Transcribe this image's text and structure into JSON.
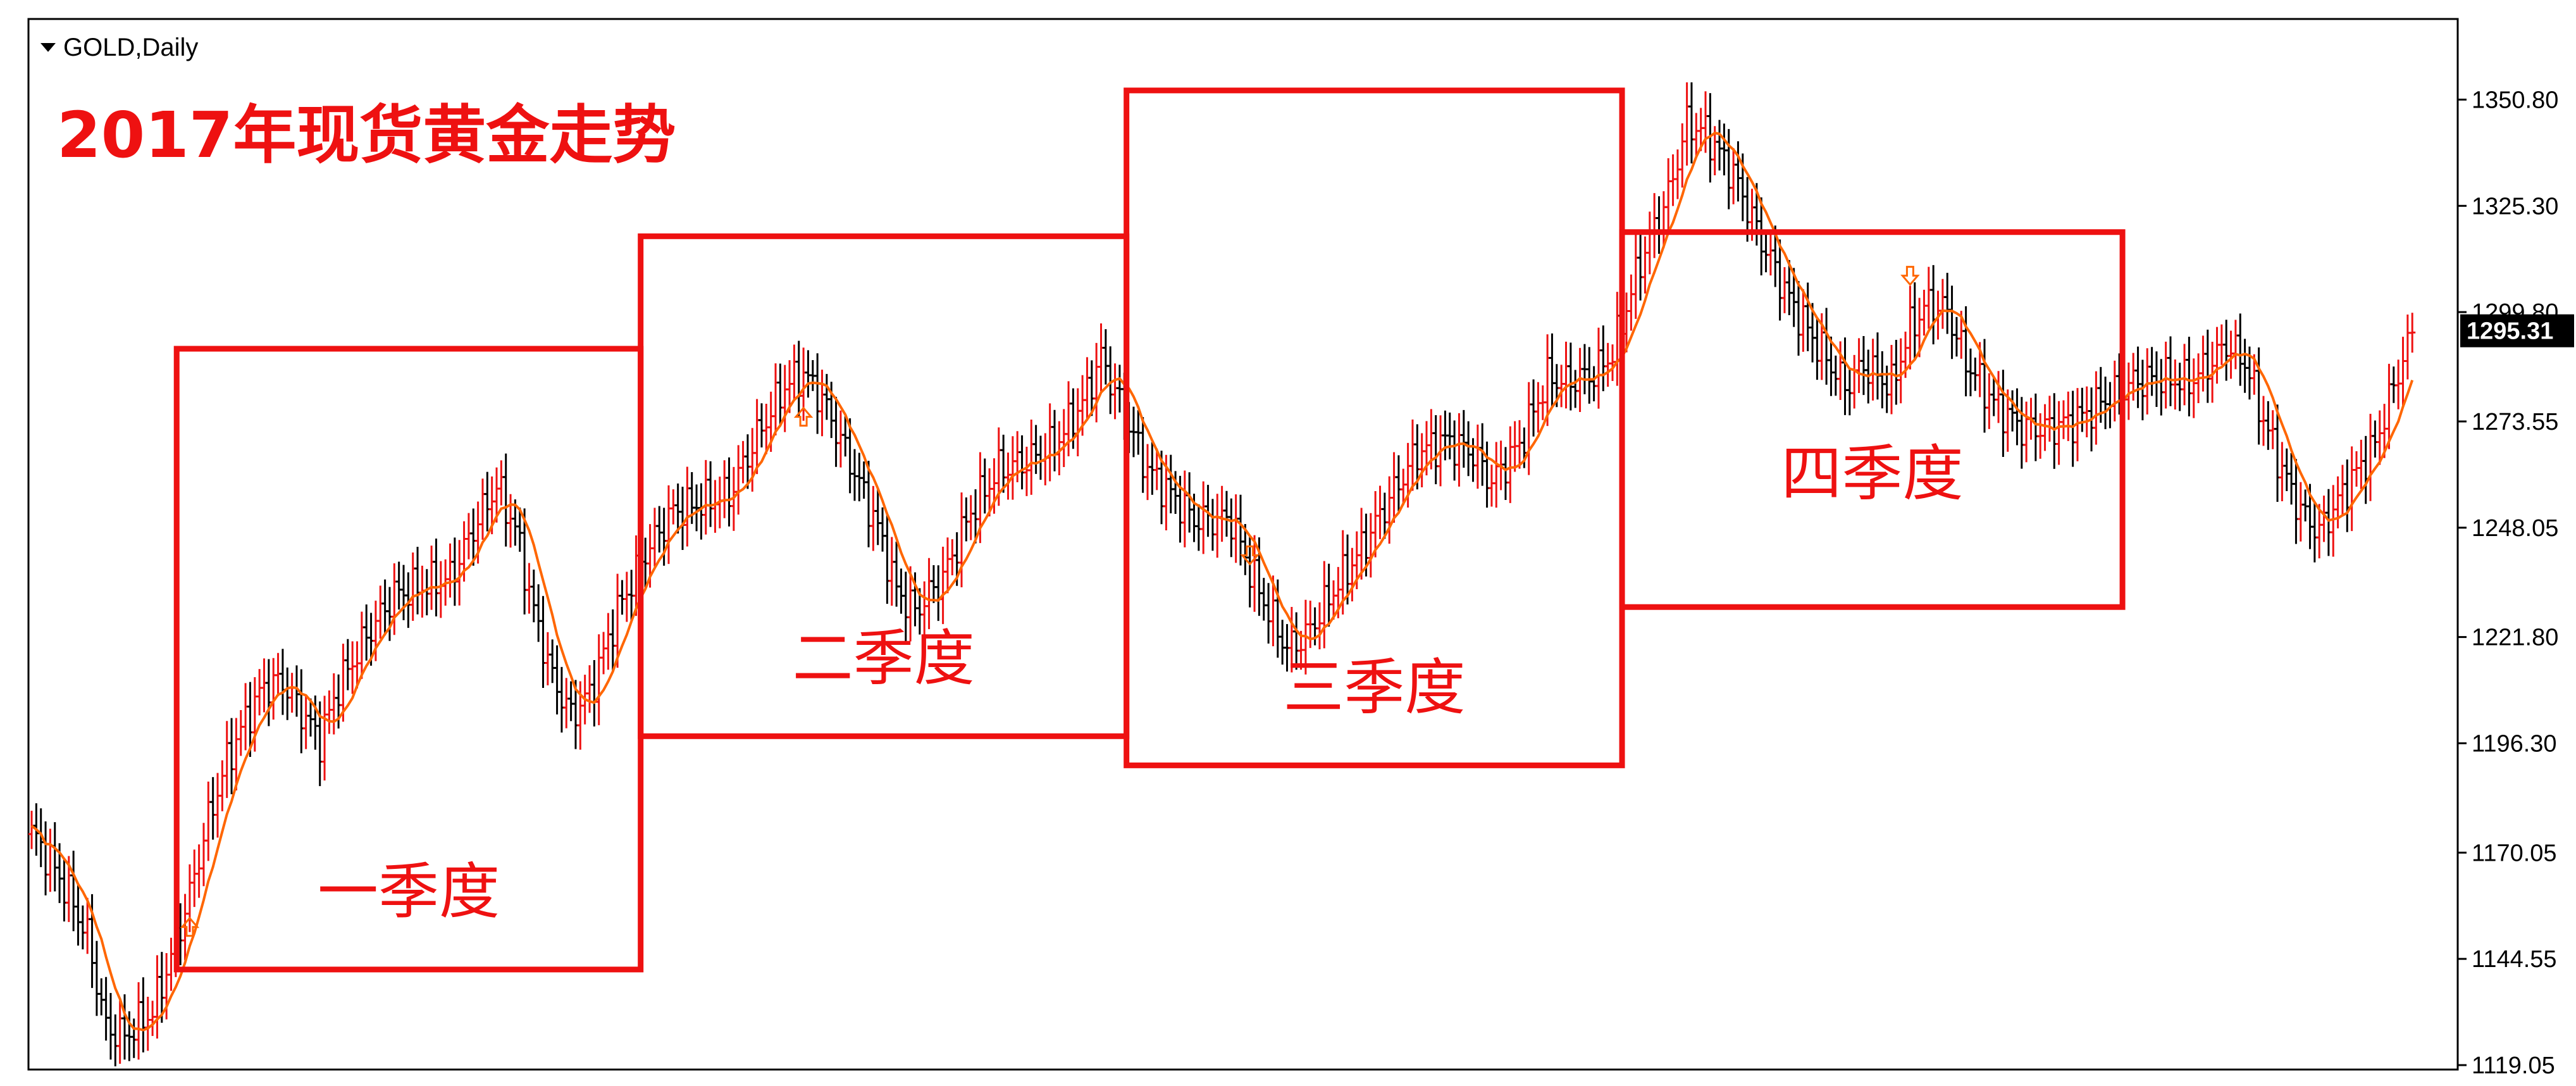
{
  "header": {
    "symbol_label": "GOLD,Daily",
    "title": "2017年现货黄金走势"
  },
  "colors": {
    "bull_bar": "#ee1111",
    "bear_bar": "#000000",
    "moving_average": "#ff6600",
    "quarter_box": "#ee1111",
    "label_text": "#ee1111",
    "signal_arrow": "#ff6600",
    "current_price_bg": "#000000"
  },
  "chart_data": {
    "type": "bar",
    "title": "2017年现货黄金走势",
    "instrument": "GOLD",
    "timeframe": "Daily",
    "ylim": [
      1119.05,
      1358
    ],
    "y_ticks": [
      "1350.80",
      "1325.30",
      "1299.80",
      "1273.55",
      "1248.05",
      "1221.80",
      "1196.30",
      "1170.05",
      "1144.55",
      "1119.05"
    ],
    "current_price": "1295.31",
    "grid": false,
    "legend": "none",
    "overlays": [
      "moving-average-line",
      "up-arrow-signals",
      "down-arrow-signals"
    ],
    "quarters": [
      {
        "label": "一季度",
        "price_low": 1142,
        "price_high": 1291,
        "period": "Q1"
      },
      {
        "label": "二季度",
        "price_low": 1198,
        "price_high": 1318,
        "period": "Q2"
      },
      {
        "label": "三季度",
        "price_low": 1191,
        "price_high": 1353,
        "period": "Q3"
      },
      {
        "label": "四季度",
        "price_low": 1229,
        "price_high": 1319,
        "period": "Q4"
      }
    ],
    "price_path": [
      [
        0,
        1175
      ],
      [
        4,
        1168
      ],
      [
        8,
        1160
      ],
      [
        12,
        1150
      ],
      [
        16,
        1128
      ],
      [
        20,
        1126
      ],
      [
        26,
        1132
      ],
      [
        30,
        1145
      ],
      [
        34,
        1160
      ],
      [
        38,
        1178
      ],
      [
        42,
        1192
      ],
      [
        46,
        1202
      ],
      [
        50,
        1210
      ],
      [
        54,
        1211
      ],
      [
        58,
        1204
      ],
      [
        62,
        1197
      ],
      [
        66,
        1210
      ],
      [
        72,
        1222
      ],
      [
        78,
        1232
      ],
      [
        84,
        1234
      ],
      [
        90,
        1236
      ],
      [
        96,
        1250
      ],
      [
        100,
        1258
      ],
      [
        104,
        1248
      ],
      [
        108,
        1228
      ],
      [
        112,
        1212
      ],
      [
        116,
        1203
      ],
      [
        120,
        1208
      ],
      [
        126,
        1228
      ],
      [
        132,
        1242
      ],
      [
        138,
        1252
      ],
      [
        144,
        1254
      ],
      [
        150,
        1256
      ],
      [
        156,
        1270
      ],
      [
        162,
        1282
      ],
      [
        166,
        1285
      ],
      [
        170,
        1279
      ],
      [
        176,
        1264
      ],
      [
        182,
        1248
      ],
      [
        186,
        1233
      ],
      [
        190,
        1228
      ],
      [
        196,
        1236
      ],
      [
        202,
        1252
      ],
      [
        208,
        1262
      ],
      [
        214,
        1264
      ],
      [
        220,
        1268
      ],
      [
        226,
        1278
      ],
      [
        230,
        1289
      ],
      [
        234,
        1278
      ],
      [
        240,
        1262
      ],
      [
        246,
        1255
      ],
      [
        250,
        1250
      ],
      [
        254,
        1250
      ],
      [
        258,
        1250
      ],
      [
        262,
        1238
      ],
      [
        266,
        1228
      ],
      [
        270,
        1219
      ],
      [
        274,
        1222
      ],
      [
        280,
        1233
      ],
      [
        286,
        1243
      ],
      [
        292,
        1255
      ],
      [
        298,
        1266
      ],
      [
        304,
        1269
      ],
      [
        310,
        1266
      ],
      [
        314,
        1259
      ],
      [
        320,
        1268
      ],
      [
        326,
        1284
      ],
      [
        330,
        1283
      ],
      [
        336,
        1285
      ],
      [
        340,
        1290
      ],
      [
        346,
        1312
      ],
      [
        352,
        1328
      ],
      [
        356,
        1345
      ],
      [
        360,
        1343
      ],
      [
        366,
        1333
      ],
      [
        372,
        1317
      ],
      [
        378,
        1303
      ],
      [
        384,
        1292
      ],
      [
        390,
        1282
      ],
      [
        394,
        1287
      ],
      [
        400,
        1282
      ],
      [
        404,
        1296
      ],
      [
        408,
        1302
      ],
      [
        412,
        1300
      ],
      [
        416,
        1288
      ],
      [
        422,
        1278
      ],
      [
        428,
        1272
      ],
      [
        434,
        1272
      ],
      [
        440,
        1274
      ],
      [
        446,
        1279
      ],
      [
        452,
        1283
      ],
      [
        458,
        1284
      ],
      [
        464,
        1283
      ],
      [
        468,
        1287
      ],
      [
        472,
        1292
      ],
      [
        476,
        1288
      ],
      [
        480,
        1274
      ],
      [
        484,
        1262
      ],
      [
        488,
        1252
      ],
      [
        492,
        1247
      ],
      [
        498,
        1258
      ],
      [
        504,
        1268
      ],
      [
        508,
        1282
      ],
      [
        512,
        1295
      ]
    ]
  }
}
